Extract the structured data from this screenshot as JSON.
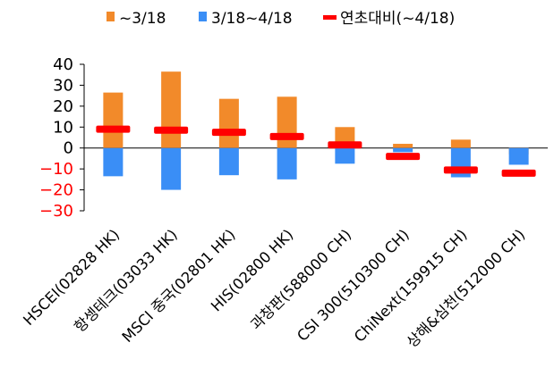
{
  "chart_data": {
    "type": "bar",
    "categories": [
      "HSCEI(02828 HK)",
      "항셍테크(03033 HK)",
      "MSCI 중국(02801 HK)",
      "HIS(02800 HK)",
      "과창판(588000 CH)",
      "CSI 300(510300 CH)",
      "ChiNext(159915 CH)",
      "상해&심천(512000 CH)"
    ],
    "series": [
      {
        "name": "~3/18",
        "color": "#f28a2a",
        "values": [
          26.5,
          36.5,
          23.5,
          24.5,
          10,
          2,
          4,
          -3
        ]
      },
      {
        "name": "3/18~4/18",
        "color": "#3a8ef6",
        "values": [
          -13.5,
          -20,
          -13,
          -15,
          -7.5,
          -2,
          -14,
          -8
        ]
      },
      {
        "name": "연초대비(~4/18)",
        "color": "#ff0000",
        "marker": "dash",
        "values": [
          9,
          8.5,
          7.5,
          5.5,
          1.5,
          -4,
          -10.5,
          -12
        ]
      }
    ],
    "ylim": [
      -30,
      40
    ],
    "yticks": [
      {
        "value": 40,
        "label": "40",
        "color": "#000000"
      },
      {
        "value": 30,
        "label": "30",
        "color": "#000000"
      },
      {
        "value": 20,
        "label": "20",
        "color": "#000000"
      },
      {
        "value": 10,
        "label": "10",
        "color": "#000000"
      },
      {
        "value": 0,
        "label": "0",
        "color": "#000000"
      },
      {
        "value": -10,
        "label": "−10",
        "color": "#ff0000"
      },
      {
        "value": -20,
        "label": "−20",
        "color": "#ff0000"
      },
      {
        "value": -30,
        "label": "−30",
        "color": "#ff0000"
      }
    ],
    "legend_position": "top",
    "grid": false
  }
}
